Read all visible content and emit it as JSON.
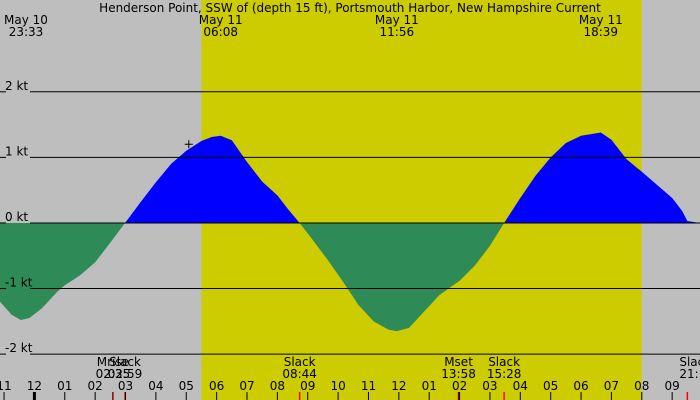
{
  "chart_data": {
    "type": "area",
    "title": "Henderson Point, SSW of (depth 15 ft), Portsmouth Harbor, New Hampshire Current",
    "xlabel": "",
    "ylabel": "",
    "ylim": [
      -2.7,
      3.4
    ],
    "y_unit": "kt",
    "grid": true,
    "colors": {
      "background": "#bebebe",
      "daylight": "#cccc00",
      "flood": "#0000ff",
      "ebb": "#2e8b57",
      "grid": "#000000",
      "sun_tick": "#ff0000",
      "moon_tick": "#8b0000"
    },
    "x_range": [
      "2024-05-10T22:52",
      "2024-05-11T21:55"
    ],
    "daylight": {
      "start": "2024-05-11T05:30",
      "end": "2024-05-11T20:00"
    },
    "y_ticks": [
      {
        "value": 2,
        "label": "2 kt"
      },
      {
        "value": 1,
        "label": "1 kt"
      },
      {
        "value": 0,
        "label": "0 kt"
      },
      {
        "value": -1,
        "label": "-1 kt"
      },
      {
        "value": -2,
        "label": "-2 kt"
      }
    ],
    "hour_ticks": [
      {
        "time": "2024-05-10T23:00",
        "label": "11"
      },
      {
        "time": "2024-05-11T00:00",
        "label": "12"
      },
      {
        "time": "2024-05-11T01:00",
        "label": "01"
      },
      {
        "time": "2024-05-11T02:00",
        "label": "02"
      },
      {
        "time": "2024-05-11T03:00",
        "label": "03"
      },
      {
        "time": "2024-05-11T04:00",
        "label": "04"
      },
      {
        "time": "2024-05-11T05:00",
        "label": "05"
      },
      {
        "time": "2024-05-11T06:00",
        "label": "06"
      },
      {
        "time": "2024-05-11T07:00",
        "label": "07"
      },
      {
        "time": "2024-05-11T08:00",
        "label": "08"
      },
      {
        "time": "2024-05-11T09:00",
        "label": "09"
      },
      {
        "time": "2024-05-11T10:00",
        "label": "10"
      },
      {
        "time": "2024-05-11T11:00",
        "label": "11"
      },
      {
        "time": "2024-05-11T12:00",
        "label": "12"
      },
      {
        "time": "2024-05-11T13:00",
        "label": "01"
      },
      {
        "time": "2024-05-11T14:00",
        "label": "02"
      },
      {
        "time": "2024-05-11T15:00",
        "label": "03"
      },
      {
        "time": "2024-05-11T16:00",
        "label": "04"
      },
      {
        "time": "2024-05-11T17:00",
        "label": "05"
      },
      {
        "time": "2024-05-11T18:00",
        "label": "06"
      },
      {
        "time": "2024-05-11T19:00",
        "label": "07"
      },
      {
        "time": "2024-05-11T20:00",
        "label": "08"
      },
      {
        "time": "2024-05-11T21:00",
        "label": "09"
      }
    ],
    "top_annotations": [
      {
        "time": "2024-05-10T23:33",
        "date": "May 10",
        "clock": "23:33"
      },
      {
        "time": "2024-05-11T06:08",
        "date": "May 11",
        "clock": "06:08"
      },
      {
        "time": "2024-05-11T11:56",
        "date": "May 11",
        "clock": "11:56"
      },
      {
        "time": "2024-05-11T18:39",
        "date": "May 11",
        "clock": "18:39"
      }
    ],
    "events": [
      {
        "time": "2024-05-11T02:35",
        "label": "Mrise",
        "clock": "02:35",
        "marker": "moon_tick"
      },
      {
        "time": "2024-05-11T02:59",
        "label": "Slack",
        "clock": "02:59",
        "marker": "sun_tick"
      },
      {
        "time": "2024-05-11T08:44",
        "label": "Slack",
        "clock": "08:44",
        "marker": "sun_tick"
      },
      {
        "time": "2024-05-11T13:58",
        "label": "Mset",
        "clock": "13:58",
        "marker": "moon_tick"
      },
      {
        "time": "2024-05-11T15:28",
        "label": "Slack",
        "clock": "15:28",
        "marker": "sun_tick"
      },
      {
        "time": "2024-05-11T21:30",
        "label": "Slack",
        "clock": "21:",
        "marker": "sun_tick"
      }
    ],
    "series": [
      {
        "points": [
          {
            "time": "2024-05-10T22:52",
            "value": -1.2
          },
          {
            "time": "2024-05-10T23:15",
            "value": -1.4
          },
          {
            "time": "2024-05-10T23:33",
            "value": -1.48
          },
          {
            "time": "2024-05-10T23:50",
            "value": -1.45
          },
          {
            "time": "2024-05-11T00:15",
            "value": -1.3
          },
          {
            "time": "2024-05-11T00:45",
            "value": -1.05
          },
          {
            "time": "2024-05-11T01:00",
            "value": -0.95
          },
          {
            "time": "2024-05-11T01:30",
            "value": -0.8
          },
          {
            "time": "2024-05-11T02:00",
            "value": -0.6
          },
          {
            "time": "2024-05-11T02:30",
            "value": -0.3
          },
          {
            "time": "2024-05-11T02:59",
            "value": 0
          },
          {
            "time": "2024-05-11T03:30",
            "value": 0.32
          },
          {
            "time": "2024-05-11T04:00",
            "value": 0.62
          },
          {
            "time": "2024-05-11T04:30",
            "value": 0.9
          },
          {
            "time": "2024-05-11T05:00",
            "value": 1.1
          },
          {
            "time": "2024-05-11T05:30",
            "value": 1.25
          },
          {
            "time": "2024-05-11T05:50",
            "value": 1.31
          },
          {
            "time": "2024-05-11T06:08",
            "value": 1.33
          },
          {
            "time": "2024-05-11T06:30",
            "value": 1.26
          },
          {
            "time": "2024-05-11T07:00",
            "value": 0.93
          },
          {
            "time": "2024-05-11T07:30",
            "value": 0.63
          },
          {
            "time": "2024-05-11T08:00",
            "value": 0.42
          },
          {
            "time": "2024-05-11T08:20",
            "value": 0.22
          },
          {
            "time": "2024-05-11T08:44",
            "value": 0
          },
          {
            "time": "2024-05-11T09:10",
            "value": -0.26
          },
          {
            "time": "2024-05-11T09:40",
            "value": -0.57
          },
          {
            "time": "2024-05-11T10:10",
            "value": -0.9
          },
          {
            "time": "2024-05-11T10:40",
            "value": -1.25
          },
          {
            "time": "2024-05-11T11:10",
            "value": -1.5
          },
          {
            "time": "2024-05-11T11:40",
            "value": -1.63
          },
          {
            "time": "2024-05-11T11:56",
            "value": -1.65
          },
          {
            "time": "2024-05-11T12:20",
            "value": -1.6
          },
          {
            "time": "2024-05-11T12:50",
            "value": -1.35
          },
          {
            "time": "2024-05-11T13:20",
            "value": -1.1
          },
          {
            "time": "2024-05-11T14:00",
            "value": -0.88
          },
          {
            "time": "2024-05-11T14:30",
            "value": -0.65
          },
          {
            "time": "2024-05-11T15:00",
            "value": -0.35
          },
          {
            "time": "2024-05-11T15:28",
            "value": 0
          },
          {
            "time": "2024-05-11T16:00",
            "value": 0.38
          },
          {
            "time": "2024-05-11T16:30",
            "value": 0.72
          },
          {
            "time": "2024-05-11T17:00",
            "value": 1.0
          },
          {
            "time": "2024-05-11T17:30",
            "value": 1.22
          },
          {
            "time": "2024-05-11T18:00",
            "value": 1.33
          },
          {
            "time": "2024-05-11T18:39",
            "value": 1.38
          },
          {
            "time": "2024-05-11T19:00",
            "value": 1.27
          },
          {
            "time": "2024-05-11T19:30",
            "value": 0.97
          },
          {
            "time": "2024-05-11T20:00",
            "value": 0.78
          },
          {
            "time": "2024-05-11T20:30",
            "value": 0.58
          },
          {
            "time": "2024-05-11T21:00",
            "value": 0.38
          },
          {
            "time": "2024-05-11T21:20",
            "value": 0.18
          },
          {
            "time": "2024-05-11T21:30",
            "value": 0.03
          },
          {
            "time": "2024-05-11T21:55",
            "value": 0
          }
        ]
      }
    ]
  }
}
